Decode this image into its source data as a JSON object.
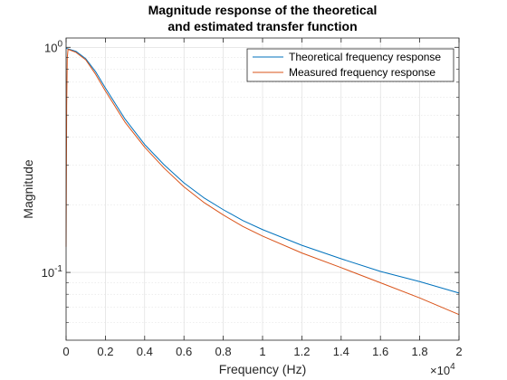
{
  "chart_data": {
    "type": "line",
    "title": [
      "Magnitude response of the theoretical",
      "and estimated transfer function"
    ],
    "xlabel": "Frequency (Hz)",
    "ylabel": "Magnitude",
    "x_multiplier_base": "×10",
    "x_multiplier_exp": "4",
    "xlim": [
      0,
      20000
    ],
    "ylim": [
      0.05,
      1.1
    ],
    "yscale": "log",
    "grid": true,
    "minor_grid": true,
    "legend_position": "top-right",
    "x_ticks": [
      {
        "value": 0,
        "label": "0"
      },
      {
        "value": 2000,
        "label": "0.2"
      },
      {
        "value": 4000,
        "label": "0.4"
      },
      {
        "value": 6000,
        "label": "0.6"
      },
      {
        "value": 8000,
        "label": "0.8"
      },
      {
        "value": 10000,
        "label": "1"
      },
      {
        "value": 12000,
        "label": "1.2"
      },
      {
        "value": 14000,
        "label": "1.4"
      },
      {
        "value": 16000,
        "label": "1.6"
      },
      {
        "value": 18000,
        "label": "1.8"
      },
      {
        "value": 20000,
        "label": "2"
      }
    ],
    "y_ticks": [
      {
        "value": 0.1,
        "base": "10",
        "exp": "-1"
      },
      {
        "value": 1,
        "base": "10",
        "exp": "0"
      }
    ],
    "series": [
      {
        "name": "Theoretical frequency response",
        "color": "#0072BD",
        "x": [
          0,
          500,
          1000,
          1500,
          2000,
          3000,
          4000,
          5000,
          6000,
          7000,
          8000,
          9000,
          10000,
          12000,
          14000,
          16000,
          18000,
          20000
        ],
        "y": [
          0.99,
          0.96,
          0.89,
          0.78,
          0.66,
          0.48,
          0.37,
          0.3,
          0.25,
          0.215,
          0.19,
          0.17,
          0.155,
          0.132,
          0.115,
          0.101,
          0.091,
          0.081
        ]
      },
      {
        "name": "Measured frequency response",
        "color": "#D95319",
        "x": [
          0,
          30,
          60,
          100,
          500,
          1000,
          1500,
          2000,
          3000,
          4000,
          5000,
          6000,
          7000,
          8000,
          9000,
          10000,
          12000,
          14000,
          16000,
          18000,
          20000
        ],
        "y": [
          0.13,
          0.55,
          0.9,
          0.98,
          0.95,
          0.88,
          0.76,
          0.64,
          0.465,
          0.36,
          0.29,
          0.24,
          0.205,
          0.18,
          0.16,
          0.145,
          0.122,
          0.105,
          0.09,
          0.077,
          0.065
        ]
      }
    ]
  }
}
